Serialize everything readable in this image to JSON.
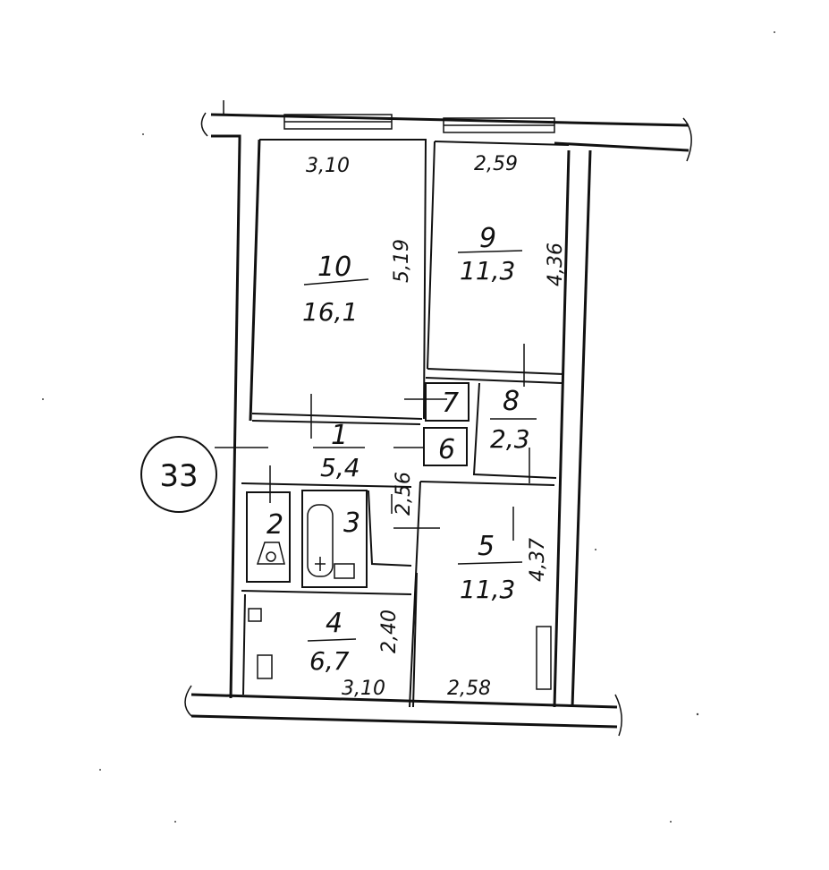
{
  "apartment": {
    "number": "33"
  },
  "rooms": [
    {
      "id": "10",
      "area": "16,1"
    },
    {
      "id": "9",
      "area": "11,3"
    },
    {
      "id": "8",
      "area": "2,3"
    },
    {
      "id": "7"
    },
    {
      "id": "6"
    },
    {
      "id": "1",
      "area": "5,4"
    },
    {
      "id": "2"
    },
    {
      "id": "3"
    },
    {
      "id": "4",
      "area": "6,7"
    },
    {
      "id": "5",
      "area": "11,3"
    }
  ],
  "dimensions": {
    "room10_width": "3,10",
    "room10_length": "5,19",
    "room9_width": "2,59",
    "room9_length": "4,36",
    "room1_length": "2,56",
    "room5_length": "4,37",
    "room5_width": "2,58",
    "room4_width": "3,10",
    "room4_length": "2,40"
  }
}
